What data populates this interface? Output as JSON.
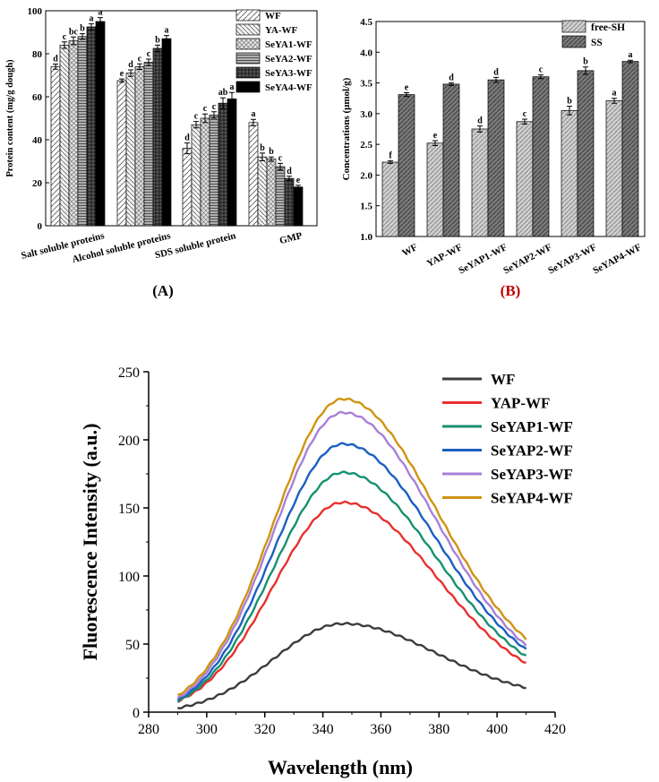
{
  "chart_data": [
    {
      "type": "bar",
      "panel_label": "(A)",
      "title": "",
      "xlabel": "",
      "ylabel": "Protein content (mg/g dough)",
      "ylim": [
        0,
        100
      ],
      "yticks": [
        "0",
        "20",
        "40",
        "60",
        "80",
        "100"
      ],
      "categories": [
        "Salt soluble proteins",
        "Alcohol soluble proteins",
        "SDS soluble protein",
        "GMP"
      ],
      "series": [
        {
          "name": "WF",
          "values": [
            74,
            67.5,
            36,
            48
          ],
          "errors": [
            1.2,
            0.8,
            2.5,
            1.5
          ],
          "letters": [
            "d",
            "e",
            "d",
            "a"
          ],
          "color": "#ffffff",
          "pattern": "diag-sparse"
        },
        {
          "name": "YA-WF",
          "values": [
            84,
            71,
            47,
            32
          ],
          "errors": [
            1.5,
            1.5,
            1.5,
            1.8
          ],
          "letters": [
            "c",
            "d",
            "c",
            "b"
          ],
          "color": "#f2f2f2",
          "pattern": "diag-back"
        },
        {
          "name": "SeYA1-WF",
          "values": [
            86,
            74,
            50,
            31
          ],
          "errors": [
            1.8,
            1.3,
            2.0,
            1.0
          ],
          "letters": [
            "bc",
            "c",
            "c",
            "b"
          ],
          "color": "#e0e0e0",
          "pattern": "cross"
        },
        {
          "name": "SeYA2-WF",
          "values": [
            88,
            76,
            51.5,
            27.5
          ],
          "errors": [
            1.3,
            1.5,
            1.5,
            1.5
          ],
          "letters": [
            "b",
            "c",
            "c",
            "c"
          ],
          "color": "#a0a0a0",
          "pattern": "hlines"
        },
        {
          "name": "SeYA3-WF",
          "values": [
            92.5,
            82.5,
            57,
            22
          ],
          "errors": [
            1.4,
            1.5,
            2.5,
            1.0
          ],
          "letters": [
            "a",
            "b",
            "ab",
            "d"
          ],
          "color": "#4a4a4a",
          "pattern": "grid"
        },
        {
          "name": "SeYA4-WF",
          "values": [
            95,
            87,
            59,
            18
          ],
          "errors": [
            1.8,
            1.5,
            3.0,
            0.8
          ],
          "letters": [
            "a",
            "a",
            "a",
            "e"
          ],
          "color": "#000000",
          "pattern": "solid"
        }
      ]
    },
    {
      "type": "bar",
      "panel_label": "(B)",
      "panel_label_color": "#c00000",
      "title": "",
      "xlabel": "",
      "ylabel": "Concentrations (μmol/g)",
      "ylim": [
        1.0,
        4.5
      ],
      "yticks": [
        "1.0",
        "1.5",
        "2.0",
        "2.5",
        "3.0",
        "3.5",
        "4.0",
        "4.5"
      ],
      "categories": [
        "WF",
        "YAP-WF",
        "SeYAP1-WF",
        "SeYAP2-WF",
        "SeYAP3-WF",
        "SeYAP4-WF"
      ],
      "series": [
        {
          "name": "free-SH",
          "values": [
            2.21,
            2.52,
            2.75,
            2.87,
            3.05,
            3.21
          ],
          "errors": [
            0.02,
            0.04,
            0.05,
            0.04,
            0.07,
            0.04
          ],
          "letters": [
            "f",
            "e",
            "d",
            "c",
            "b",
            "a"
          ],
          "color": "#c8c8c8"
        },
        {
          "name": "SS",
          "values": [
            3.31,
            3.48,
            3.55,
            3.6,
            3.7,
            3.85
          ],
          "errors": [
            0.03,
            0.02,
            0.04,
            0.03,
            0.06,
            0.02
          ],
          "letters": [
            "e",
            "d",
            "d",
            "c",
            "b",
            "a"
          ],
          "color": "#6e6e6e"
        }
      ]
    },
    {
      "type": "line",
      "title": "",
      "xlabel": "Wavelength (nm)",
      "ylabel": "Fluorescence Intensity (a.u.)",
      "xlim": [
        280,
        420
      ],
      "ylim": [
        0,
        250
      ],
      "xticks": [
        "280",
        "300",
        "320",
        "340",
        "360",
        "380",
        "400",
        "420"
      ],
      "yticks": [
        "0",
        "50",
        "100",
        "150",
        "200",
        "250"
      ],
      "peak_x": 347,
      "series": [
        {
          "name": "WF",
          "start": 3,
          "peak": 65,
          "end": 18,
          "color": "#3c3c3c"
        },
        {
          "name": "YAP-WF",
          "start": 8,
          "peak": 154,
          "end": 36,
          "color": "#e8302e"
        },
        {
          "name": "SeYAP1-WF",
          "start": 8,
          "peak": 176,
          "end": 41,
          "color": "#169070"
        },
        {
          "name": "SeYAP2-WF",
          "start": 9,
          "peak": 197,
          "end": 46,
          "color": "#1a5fc0"
        },
        {
          "name": "SeYAP3-WF",
          "start": 10,
          "peak": 220,
          "end": 49,
          "color": "#a880d8"
        },
        {
          "name": "SeYAP4-WF",
          "start": 12,
          "peak": 230,
          "end": 54,
          "color": "#cf9411"
        }
      ]
    }
  ]
}
